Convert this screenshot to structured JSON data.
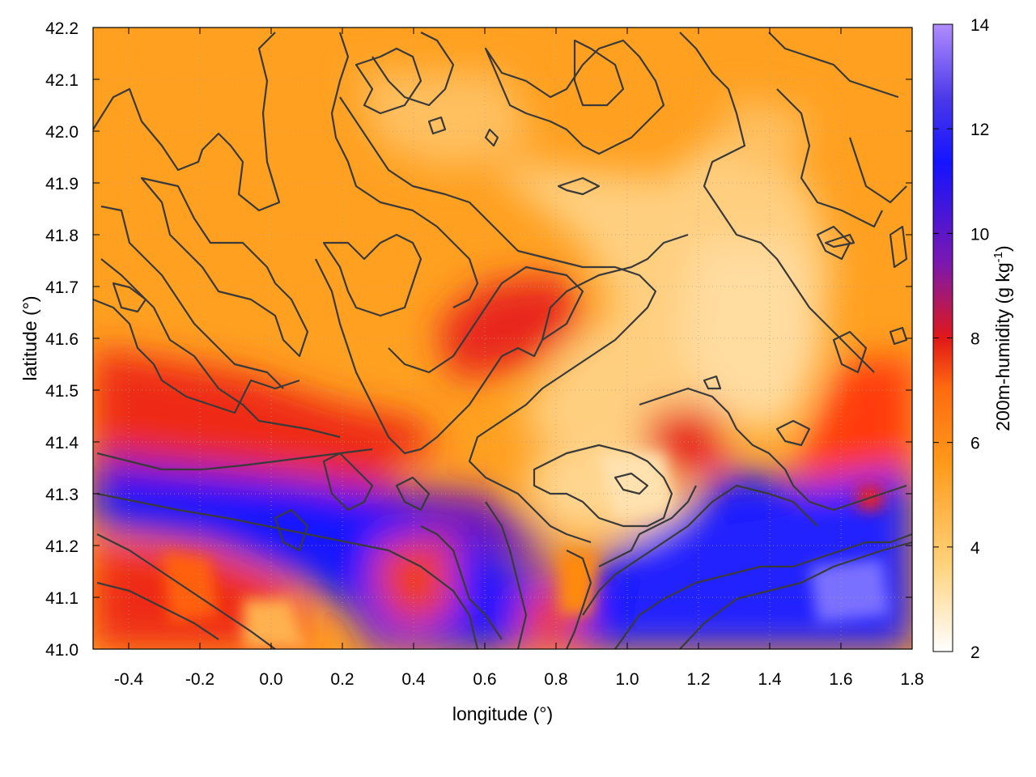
{
  "chart_data": {
    "type": "heatmap",
    "xlabel": "longitude (°)",
    "ylabel": "latitude (°)",
    "xlim": [
      -0.5,
      1.8
    ],
    "ylim": [
      41.0,
      42.2
    ],
    "x_ticks": [
      "-0.4",
      "-0.2",
      "0.0",
      "0.2",
      "0.4",
      "0.6",
      "0.8",
      "1.0",
      "1.2",
      "1.4",
      "1.6",
      "1.8"
    ],
    "y_ticks": [
      "41.0",
      "41.1",
      "41.2",
      "41.3",
      "41.4",
      "41.5",
      "41.6",
      "41.7",
      "41.8",
      "41.9",
      "42.0",
      "42.1",
      "42.2"
    ],
    "grid": true,
    "colorbar": {
      "label_main": "200m-humidity (g kg",
      "label_sup": "-1",
      "label_end": ")",
      "range": [
        2,
        14
      ],
      "ticks": [
        "2",
        "4",
        "6",
        "8",
        "10",
        "12",
        "14"
      ],
      "colors": [
        "#ffffff",
        "#ffd27a",
        "#ff9a1a",
        "#ff5a10",
        "#e01818",
        "#7a18b0",
        "#1414ff",
        "#3a2fe0",
        "#b08cff"
      ]
    },
    "field_description_points": [
      {
        "lon": -0.4,
        "lat": 42.0,
        "value": 5.5
      },
      {
        "lon": 0.2,
        "lat": 41.9,
        "value": 5.5
      },
      {
        "lon": 0.6,
        "lat": 41.9,
        "value": 4.5
      },
      {
        "lon": 1.3,
        "lat": 41.6,
        "value": 3.6
      },
      {
        "lon": 0.9,
        "lat": 41.3,
        "value": 3.8
      },
      {
        "lon": 0.7,
        "lat": 41.65,
        "value": 8.0
      },
      {
        "lon": -0.2,
        "lat": 41.45,
        "value": 8.0
      },
      {
        "lon": -0.1,
        "lat": 41.3,
        "value": 11.0
      },
      {
        "lon": 0.5,
        "lat": 41.05,
        "value": 11.0
      },
      {
        "lon": 1.5,
        "lat": 41.15,
        "value": 11.5
      },
      {
        "lon": 1.6,
        "lat": 41.1,
        "value": 12.5
      },
      {
        "lon": 0.0,
        "lat": 41.1,
        "value": 6.5
      },
      {
        "lon": 1.7,
        "lat": 41.55,
        "value": 7.5
      }
    ]
  }
}
